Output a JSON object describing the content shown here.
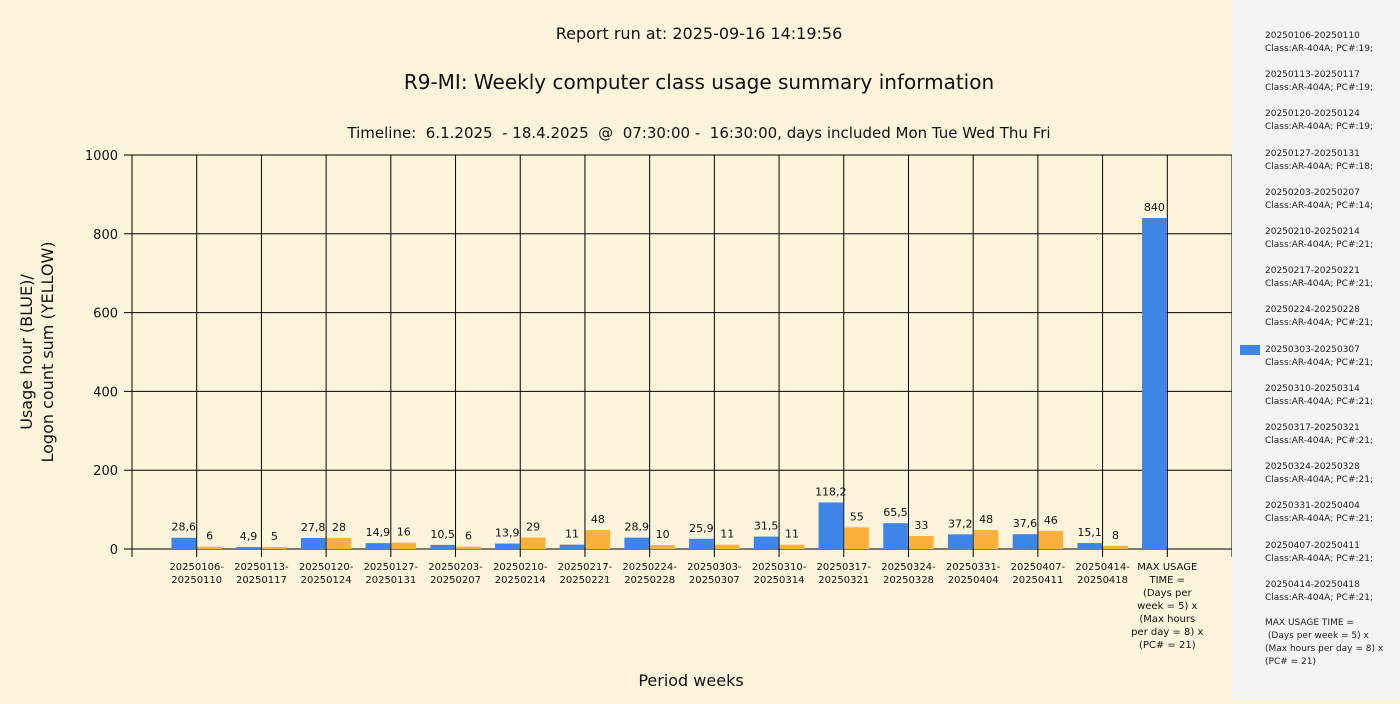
{
  "report_run": "Report run at: 2025-09-16 14:19:56",
  "chart_data": {
    "type": "bar",
    "title": "R9-MI: Weekly computer class usage summary information",
    "subtitle": "Timeline:  6.1.2025  - 18.4.2025  @  07:30:00 -  16:30:00, days included Mon Tue Wed Thu Fri",
    "xlabel": "Period weeks",
    "ylabel": [
      "Usage hour (BLUE)/",
      "Logon count sum (YELLOW)"
    ],
    "ylim": [
      0,
      1000
    ],
    "yticks": [
      "0",
      "200",
      "400",
      "600",
      "800",
      "1000"
    ],
    "grid": true,
    "legend_position": "right",
    "colors": {
      "blue": "#3d86e8",
      "yellow": "#fbb03b"
    },
    "categories": [
      [
        "20250106-",
        "20250110"
      ],
      [
        "20250113-",
        "20250117"
      ],
      [
        "20250120-",
        "20250124"
      ],
      [
        "20250127-",
        "20250131"
      ],
      [
        "20250203-",
        "20250207"
      ],
      [
        "20250210-",
        "20250214"
      ],
      [
        "20250217-",
        "20250221"
      ],
      [
        "20250224-",
        "20250228"
      ],
      [
        "20250303-",
        "20250307"
      ],
      [
        "20250310-",
        "20250314"
      ],
      [
        "20250317-",
        "20250321"
      ],
      [
        "20250324-",
        "20250328"
      ],
      [
        "20250331-",
        "20250404"
      ],
      [
        "20250407-",
        "20250411"
      ],
      [
        "20250414-",
        "20250418"
      ],
      [
        "MAX USAGE",
        "TIME =",
        "(Days per",
        "week = 5) x",
        "(Max hours",
        "per day = 8) x",
        "(PC# = 21)"
      ]
    ],
    "series": [
      {
        "color": "#3d86e8",
        "values": [
          28.6,
          4.9,
          27.8,
          14.9,
          10.5,
          13.9,
          11,
          28.9,
          25.9,
          31.5,
          118.2,
          65.5,
          37.2,
          37.6,
          15.1,
          840
        ],
        "labels": [
          "28,6",
          "4,9",
          "27,8",
          "14,9",
          "10,5",
          "13,9",
          "11",
          "28,9",
          "25,9",
          "31,5",
          "118,2",
          "65,5",
          "37,2",
          "37,6",
          "15,1",
          "840"
        ]
      },
      {
        "color": "#fbb03b",
        "values": [
          6,
          5,
          28,
          16,
          6,
          29,
          48,
          10,
          11,
          11,
          55,
          33,
          48,
          46,
          8,
          null
        ],
        "labels": [
          "6",
          "5",
          "28",
          "16",
          "6",
          "29",
          "48",
          "10",
          "11",
          "11",
          "55",
          "33",
          "48",
          "46",
          "8",
          ""
        ]
      }
    ]
  },
  "legend": {
    "items": [
      {
        "line1": "20250106-20250110",
        "line2": "Class:AR-404A; PC#:19;"
      },
      {
        "line1": "20250113-20250117",
        "line2": "Class:AR-404A; PC#:19;"
      },
      {
        "line1": "20250120-20250124",
        "line2": "Class:AR-404A; PC#:19;"
      },
      {
        "line1": "20250127-20250131",
        "line2": "Class:AR-404A; PC#:18;"
      },
      {
        "line1": "20250203-20250207",
        "line2": "Class:AR-404A; PC#:14;"
      },
      {
        "line1": "20250210-20250214",
        "line2": "Class:AR-404A; PC#:21;"
      },
      {
        "line1": "20250217-20250221",
        "line2": "Class:AR-404A; PC#:21;"
      },
      {
        "line1": "20250224-20250228",
        "line2": "Class:AR-404A; PC#:21;"
      },
      {
        "line1": "20250303-20250307",
        "line2": "Class:AR-404A; PC#:21;"
      },
      {
        "line1": "20250310-20250314",
        "line2": "Class:AR-404A; PC#:21;"
      },
      {
        "line1": "20250317-20250321",
        "line2": "Class:AR-404A; PC#:21;"
      },
      {
        "line1": "20250324-20250328",
        "line2": "Class:AR-404A; PC#:21;"
      },
      {
        "line1": "20250331-20250404",
        "line2": "Class:AR-404A; PC#:21;"
      },
      {
        "line1": "20250407-20250411",
        "line2": "Class:AR-404A; PC#:21;"
      },
      {
        "line1": "20250414-20250418",
        "line2": "Class:AR-404A; PC#:21;"
      }
    ],
    "swatch_item_index": 8,
    "max_note": "MAX USAGE TIME =\n (Days per week = 5) x (Max hours per day = 8) x (PC# = 21)"
  }
}
